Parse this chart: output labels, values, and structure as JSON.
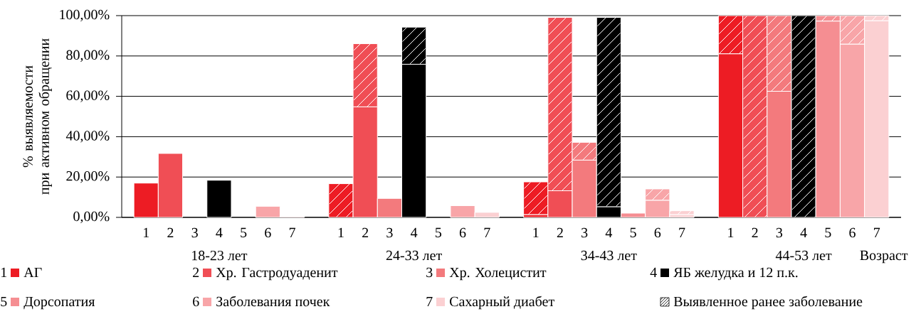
{
  "chart_data": {
    "type": "bar",
    "stacked": true,
    "ylabel": "% выявляемости при активном обращении",
    "xlabel": "Возраст",
    "categories": [
      "1",
      "2",
      "3",
      "4",
      "5",
      "6",
      "7",
      null,
      "1",
      "2",
      "3",
      "4",
      "5",
      "6",
      "7",
      null,
      "1",
      "2",
      "3",
      "4",
      "5",
      "6",
      "7",
      null,
      "1",
      "2",
      "3",
      "4",
      "5",
      "6",
      "7"
    ],
    "series": [
      {
        "colors": [
          "#ed1c24",
          "#f04e55",
          "#f37a7d",
          "#000000",
          "#f58e92",
          "#f8a5a8",
          "#fbd0d2",
          null,
          "#ed1c24",
          "#f04e55",
          "#f37a7d",
          "#000000",
          "#f58e92",
          "#f8a5a8",
          "#fbd0d2",
          null,
          "#ed1c24",
          "#f04e55",
          "#f37a7d",
          "#000000",
          "#f58e92",
          "#f8a5a8",
          "#fbd0d2",
          null,
          "#ed1c24",
          "#f04e55",
          "#f37a7d",
          "#000000",
          "#f58e92",
          "#f8a5a8",
          "#fbd0d2"
        ],
        "values": [
          17.0,
          31.7,
          0,
          18.4,
          0,
          5.5,
          0.5,
          null,
          0,
          54.8,
          9.4,
          75.9,
          0,
          5.8,
          2.5,
          null,
          1.4,
          13.2,
          28.4,
          5.3,
          2.1,
          8.5,
          1.4,
          null,
          81.1,
          0,
          62.5,
          0,
          97.3,
          85.9,
          97.5
        ]
      },
      {
        "name": "Выявленное ранее заболевание",
        "colors": [
          "#ed1c24",
          "#f04e55",
          "#f37a7d",
          "#000000",
          "#f58e92",
          "#f8a5a8",
          "#fbd0d2",
          null,
          "#ed1c24",
          "#f04e55",
          "#f37a7d",
          "#000000",
          "#f58e92",
          "#f8a5a8",
          "#fbd0d2",
          null,
          "#ed1c24",
          "#f04e55",
          "#f37a7d",
          "#000000",
          "#f58e92",
          "#f8a5a8",
          "#fbd0d2",
          null,
          "#ed1c24",
          "#f04e55",
          "#f37a7d",
          "#000000",
          "#f58e92",
          "#f8a5a8",
          "#fbd0d2"
        ],
        "values": [
          null,
          null,
          null,
          null,
          null,
          null,
          null,
          null,
          16.7,
          31.3,
          null,
          18.4,
          null,
          null,
          null,
          null,
          16.2,
          85.9,
          8.8,
          93.8,
          null,
          5.6,
          1.9,
          null,
          18.9,
          100,
          37.5,
          100,
          2.7,
          14.1,
          2.5
        ]
      }
    ],
    "ylim": [
      0,
      100
    ],
    "yticks": [
      {
        "value": 0,
        "label": "0,00%"
      },
      {
        "value": 20,
        "label": "20,00%"
      },
      {
        "value": 40,
        "label": "40,00%"
      },
      {
        "value": 60,
        "label": "60,00%"
      },
      {
        "value": 80,
        "label": "80,00%"
      },
      {
        "value": 100,
        "label": "100,00%"
      }
    ],
    "grid": "y",
    "legend": "bottom",
    "annotations": [
      "АГ",
      "Хр. Гастродуаденит",
      "Хр. Холецистит",
      "ЯБ желудка и 12 п.к.",
      "Дорсопатия",
      "Заболевания почек",
      "Сахарный диабет",
      "18-23 лет",
      "24-33 лет",
      "34-43 лет",
      "44-53 лет"
    ]
  }
}
